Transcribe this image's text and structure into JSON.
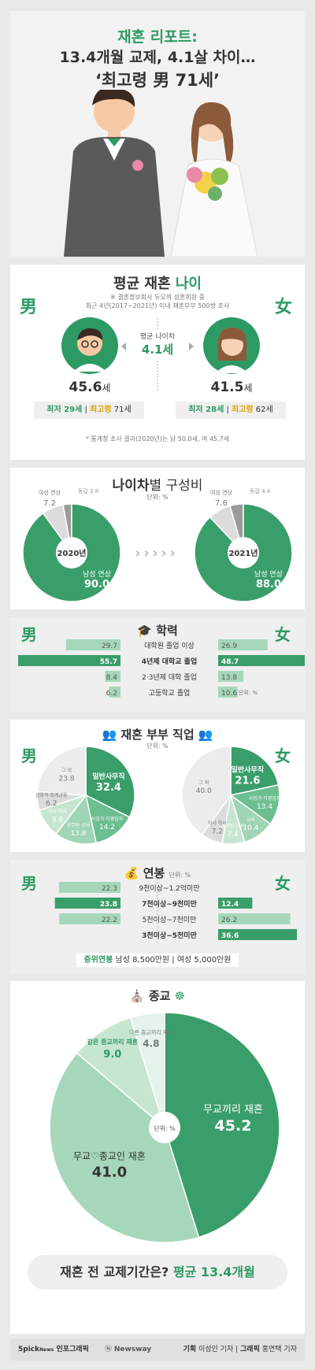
{
  "header": {
    "line1": "재혼 리포트:",
    "line2": "13.4개월 교제, 4.1살 차이…",
    "line3": "‘최고령 男 71세’"
  },
  "age": {
    "title_plain": "평균 재혼 ",
    "title_bold": "나이",
    "note1": "※ 결혼정보회사 듀오의 성혼회원 중",
    "note2": "최근 4년(2017~2021년) 이내 재혼부부 500쌍 조사",
    "male_symbol": "男",
    "female_symbol": "女",
    "gap_label": "평균 나이차",
    "gap_value": "4.1세",
    "male_avg": "45.6",
    "female_avg": "41.5",
    "unit_age": "세",
    "male_min": "최저 29세",
    "male_max_label": "최고령",
    "male_max": "71세",
    "female_min": "최저 28세",
    "female_max_label": "최고령",
    "female_max": "62세",
    "footnote": "* 통계청 조사 결과(2020년)는 남 50.0세, 여 45.7세"
  },
  "composition": {
    "title_bold": "나이차",
    "title_plain": "별 구성비",
    "unit": "단위: %",
    "year1": "2020년",
    "year2": "2021년",
    "slice_male_label": "남성 연상",
    "slice_female_label": "여성 연상",
    "slice_same_label": "동갑"
  },
  "education": {
    "title": "학력",
    "unit": "단위: %",
    "rows": [
      {
        "label": "대학원 졸업 이상",
        "male": 29.7,
        "female": 26.9,
        "bold": false
      },
      {
        "label": "4년제 대학교 졸업",
        "male": 55.7,
        "female": 48.7,
        "bold": true
      },
      {
        "label": "2·3년제 대학 졸업",
        "male": 8.4,
        "female": 13.8,
        "bold": false
      },
      {
        "label": "고등학교 졸업",
        "male": 6.2,
        "female": 10.6,
        "bold": false
      }
    ]
  },
  "job": {
    "title_plain": "재혼 부부 ",
    "title_bold": "직업",
    "unit": "단위: %"
  },
  "salary": {
    "title": "연봉",
    "unit": "단위: %",
    "rows": [
      {
        "label": "9천이상~1.2억미만",
        "male": 22.3,
        "female": null,
        "bold": false
      },
      {
        "label": "7천이상~9천미만",
        "male": 23.8,
        "female": 12.4,
        "bold": true
      },
      {
        "label": "5천이상~7천미만",
        "male": 22.2,
        "female": 26.2,
        "bold": false
      },
      {
        "label": "3천이상~5천미만",
        "male": null,
        "female": 36.6,
        "bold": true
      }
    ],
    "median_label": "중위연봉",
    "median_text": " 남성 8,500만원 | 여성 5,000만원"
  },
  "religion": {
    "title": "종교",
    "unit": "단위: %"
  },
  "dating": {
    "question": "재혼 전 교제기간은?",
    "answer": "평균 13.4개월"
  },
  "footer": {
    "brand": "5pick",
    "brand_sub": "News",
    "brand_tail": " 인포그래픽",
    "newsway": "Newsway",
    "credit_plan_label": "기획",
    "credit_plan": " 이성인 기자",
    "credit_graphic_label": "그래픽",
    "credit_graphic": " 홍연택 기자"
  },
  "chart_data": [
    {
      "type": "pie",
      "title": "2020년",
      "labels": [
        "남성 연상",
        "여성 연상",
        "동갑"
      ],
      "values": [
        90.0,
        7.2,
        2.8
      ]
    },
    {
      "type": "pie",
      "title": "2021년",
      "labels": [
        "남성 연상",
        "여성 연상",
        "동갑"
      ],
      "values": [
        88.0,
        7.6,
        4.4
      ]
    },
    {
      "type": "bar",
      "title": "학력",
      "categories": [
        "대학원 졸업 이상",
        "4년제 대학교 졸업",
        "2·3년제 대학 졸업",
        "고등학교 졸업"
      ],
      "series": [
        {
          "name": "男",
          "values": [
            29.7,
            55.7,
            8.4,
            6.2
          ]
        },
        {
          "name": "女",
          "values": [
            26.9,
            48.7,
            13.8,
            10.6
          ]
        }
      ]
    },
    {
      "type": "pie",
      "title": "男",
      "labels": [
        "일반사무직",
        "사업가·자영업자",
        "공무원·공사",
        "의사·약사",
        "금융직·회계금융",
        "그 외"
      ],
      "values": [
        32.4,
        14.2,
        13.8,
        9.6,
        6.2,
        23.8
      ]
    },
    {
      "type": "pie",
      "title": "女",
      "labels": [
        "일반사무직",
        "사업가·자영업자",
        "교사",
        "공무원·공사",
        "의사·약사",
        "그 외"
      ],
      "values": [
        21.6,
        13.4,
        10.4,
        7.4,
        7.2,
        40.0
      ]
    },
    {
      "type": "bar",
      "title": "연봉",
      "categories": [
        "9천이상~1.2억미만",
        "7천이상~9천미만",
        "5천이상~7천미만",
        "3천이상~5천미만"
      ],
      "series": [
        {
          "name": "男",
          "values": [
            22.3,
            23.8,
            22.2,
            null
          ]
        },
        {
          "name": "女",
          "values": [
            null,
            12.4,
            26.2,
            36.6
          ]
        }
      ]
    },
    {
      "type": "pie",
      "title": "종교",
      "labels": [
        "무교끼리 재혼",
        "무교♡종교인 재혼",
        "같은 종교끼리 재혼",
        "다른 종교끼리 재혼"
      ],
      "values": [
        45.2,
        41.0,
        9.0,
        4.8
      ]
    }
  ]
}
